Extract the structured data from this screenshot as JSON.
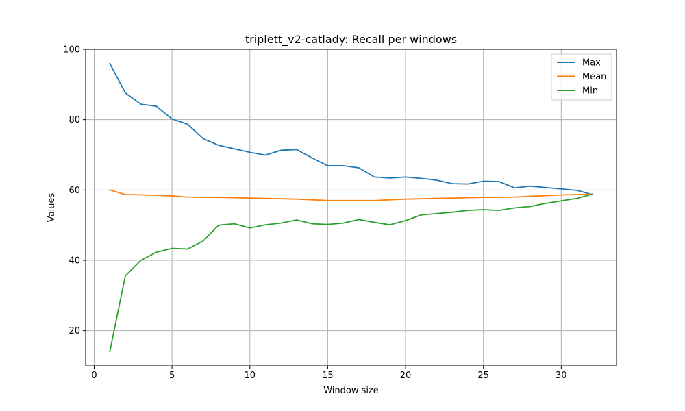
{
  "chart_data": {
    "type": "line",
    "title": "triplett_v2-catlady: Recall per windows",
    "xlabel": "Window size",
    "ylabel": "Values",
    "xlim": [
      -0.55,
      33.55
    ],
    "ylim": [
      10,
      100
    ],
    "xticks": [
      0,
      5,
      10,
      15,
      20,
      25,
      30
    ],
    "yticks": [
      20,
      40,
      60,
      80,
      100
    ],
    "grid": true,
    "legend_position": "top-right",
    "x": [
      1,
      2,
      3,
      4,
      5,
      6,
      7,
      8,
      9,
      10,
      11,
      12,
      13,
      14,
      15,
      16,
      17,
      18,
      19,
      20,
      21,
      22,
      23,
      24,
      25,
      26,
      27,
      28,
      29,
      30,
      31,
      32
    ],
    "series": [
      {
        "name": "Max",
        "color": "#1f77b4",
        "values": [
          96.0,
          87.6,
          84.4,
          83.8,
          80.2,
          78.7,
          74.6,
          72.7,
          71.7,
          70.7,
          69.9,
          71.3,
          71.5,
          69.1,
          66.9,
          66.9,
          66.3,
          63.7,
          63.4,
          63.7,
          63.3,
          62.8,
          61.8,
          61.7,
          62.5,
          62.4,
          60.6,
          61.1,
          60.7,
          60.3,
          59.9,
          58.7
        ]
      },
      {
        "name": "Mean",
        "color": "#ff7f0e",
        "values": [
          60.0,
          58.7,
          58.6,
          58.5,
          58.3,
          58.0,
          57.9,
          57.9,
          57.8,
          57.7,
          57.6,
          57.5,
          57.4,
          57.2,
          57.0,
          57.0,
          57.0,
          57.0,
          57.2,
          57.4,
          57.5,
          57.6,
          57.7,
          57.8,
          57.9,
          57.9,
          58.0,
          58.2,
          58.4,
          58.6,
          58.7,
          58.8
        ]
      },
      {
        "name": "Min",
        "color": "#2ca02c",
        "values": [
          14.0,
          35.6,
          40.0,
          42.3,
          43.4,
          43.2,
          45.5,
          50.0,
          50.4,
          49.2,
          50.1,
          50.6,
          51.5,
          50.4,
          50.2,
          50.6,
          51.6,
          50.8,
          50.1,
          51.3,
          52.9,
          53.3,
          53.7,
          54.2,
          54.4,
          54.2,
          54.9,
          55.3,
          56.2,
          56.9,
          57.6,
          58.8
        ]
      }
    ]
  }
}
